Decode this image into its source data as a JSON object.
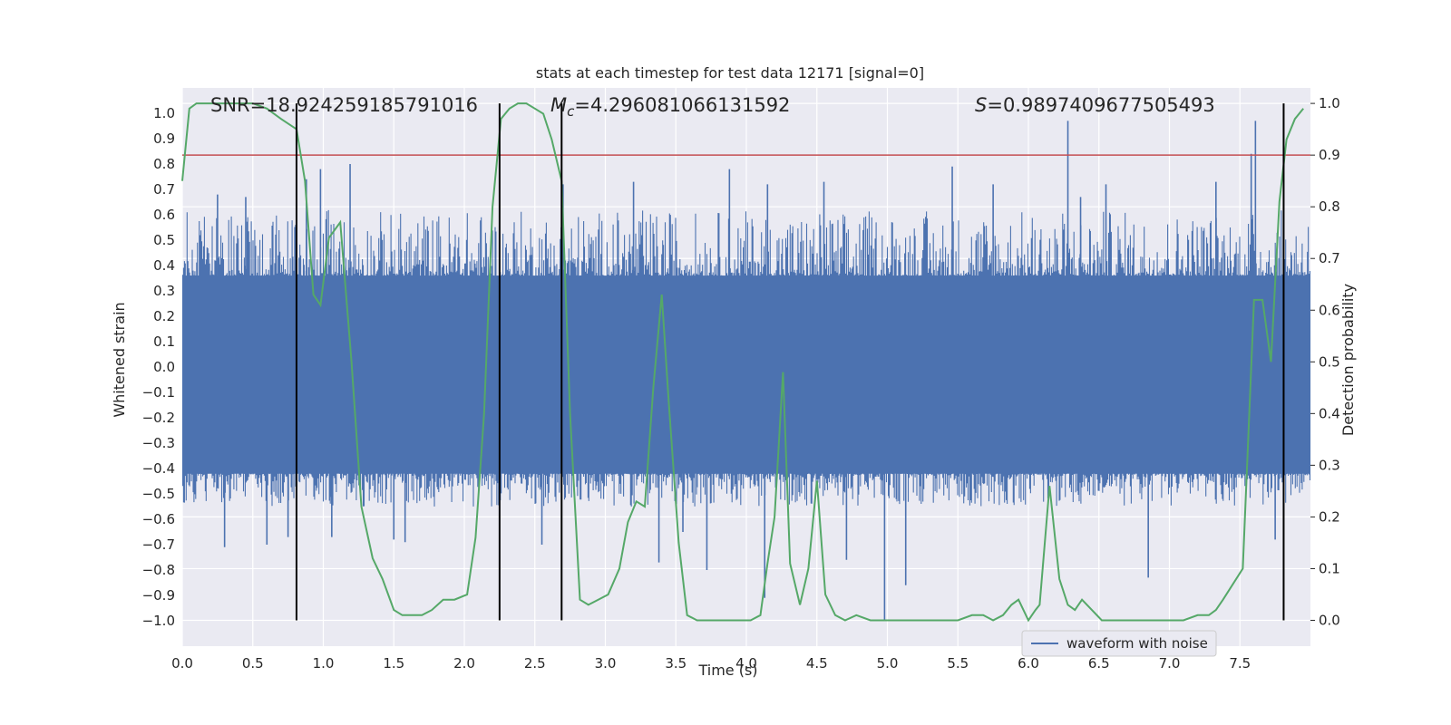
{
  "chart_data": {
    "type": "line",
    "title": "stats at each timestep for test data 12171 [signal=0]",
    "xlabel": "Time (s)",
    "ylabel_left": "Whitened strain",
    "ylabel_right": "Detection probability",
    "xlim": [
      0.0,
      8.0
    ],
    "ylim_left": [
      -1.1,
      1.1
    ],
    "ylim_right": [
      -0.05,
      1.03
    ],
    "x_ticks": [
      "0.0",
      "0.5",
      "1.0",
      "1.5",
      "2.0",
      "2.5",
      "3.0",
      "3.5",
      "4.0",
      "4.5",
      "5.0",
      "5.5",
      "6.0",
      "6.5",
      "7.0",
      "7.5"
    ],
    "y_ticks_left": [
      "1.0",
      "0.9",
      "0.8",
      "0.7",
      "0.6",
      "0.5",
      "0.4",
      "0.3",
      "0.2",
      "0.1",
      "0.0",
      "−0.1",
      "−0.2",
      "−0.3",
      "−0.4",
      "−0.5",
      "−0.6",
      "−0.7",
      "−0.8",
      "−0.9",
      "−1.0"
    ],
    "y_ticks_right": [
      "1.0",
      "0.9",
      "0.8",
      "0.7",
      "0.6",
      "0.5",
      "0.4",
      "0.3",
      "0.2",
      "0.1",
      "0.0"
    ],
    "annotations": {
      "snr": "SNR=18.924259185791016",
      "mc_symbol": "M",
      "mc_subscript": "c",
      "mc_value": "=4.296081066131592",
      "s_symbol": "S",
      "s_value": "=0.9897409677505493"
    },
    "legend": {
      "label": "waveform with noise",
      "placement": "lower-right"
    },
    "threshold_probability": 0.9,
    "vertical_markers_s": [
      0.81,
      2.25,
      2.69,
      7.81
    ],
    "waveform": {
      "name": "waveform with noise",
      "color": "#4c72b0",
      "dense_band": [
        -0.42,
        0.36
      ],
      "typical_range": [
        -0.55,
        0.62
      ],
      "spikes": [
        [
          0.25,
          0.68
        ],
        [
          0.3,
          -0.71
        ],
        [
          0.45,
          0.67
        ],
        [
          0.6,
          -0.7
        ],
        [
          0.75,
          -0.67
        ],
        [
          0.88,
          0.74
        ],
        [
          0.98,
          0.78
        ],
        [
          1.06,
          -0.67
        ],
        [
          1.19,
          0.8
        ],
        [
          1.5,
          -0.68
        ],
        [
          1.58,
          -0.69
        ],
        [
          2.55,
          -0.7
        ],
        [
          2.7,
          0.72
        ],
        [
          3.2,
          0.73
        ],
        [
          3.38,
          -0.77
        ],
        [
          3.55,
          -0.65
        ],
        [
          3.72,
          -0.8
        ],
        [
          3.88,
          0.78
        ],
        [
          4.13,
          -0.91
        ],
        [
          4.15,
          0.72
        ],
        [
          4.55,
          0.73
        ],
        [
          4.71,
          -0.76
        ],
        [
          4.98,
          -1.0
        ],
        [
          5.13,
          -0.86
        ],
        [
          5.46,
          0.79
        ],
        [
          5.75,
          0.72
        ],
        [
          6.28,
          0.97
        ],
        [
          6.37,
          0.67
        ],
        [
          6.55,
          0.72
        ],
        [
          6.85,
          -0.83
        ],
        [
          7.33,
          0.73
        ],
        [
          7.58,
          0.84
        ],
        [
          7.61,
          0.97
        ],
        [
          7.75,
          -0.68
        ]
      ]
    },
    "series": [
      {
        "name": "Detection probability",
        "axis": "right",
        "color": "#55a868",
        "x": [
          0.0,
          0.05,
          0.1,
          0.2,
          0.3,
          0.4,
          0.5,
          0.6,
          0.7,
          0.81,
          0.87,
          0.93,
          0.98,
          1.04,
          1.12,
          1.2,
          1.27,
          1.35,
          1.42,
          1.5,
          1.56,
          1.63,
          1.7,
          1.77,
          1.85,
          1.93,
          2.02,
          2.08,
          2.14,
          2.2,
          2.26,
          2.32,
          2.38,
          2.44,
          2.5,
          2.56,
          2.62,
          2.69,
          2.75,
          2.82,
          2.88,
          2.95,
          3.02,
          3.1,
          3.16,
          3.22,
          3.28,
          3.34,
          3.4,
          3.45,
          3.52,
          3.58,
          3.65,
          3.75,
          3.85,
          3.95,
          4.03,
          4.1,
          4.15,
          4.2,
          4.26,
          4.31,
          4.38,
          4.44,
          4.5,
          4.56,
          4.63,
          4.7,
          4.78,
          4.88,
          5.0,
          5.2,
          5.5,
          5.6,
          5.68,
          5.75,
          5.82,
          5.88,
          5.93,
          6.0,
          6.05,
          6.08,
          6.15,
          6.22,
          6.28,
          6.33,
          6.38,
          6.45,
          6.52,
          6.6,
          6.8,
          7.1,
          7.2,
          7.28,
          7.33,
          7.38,
          7.45,
          7.52,
          7.6,
          7.66,
          7.72,
          7.78,
          7.83,
          7.89,
          7.95
        ],
        "y": [
          0.85,
          0.99,
          1.0,
          1.0,
          1.0,
          1.0,
          1.0,
          0.99,
          0.97,
          0.95,
          0.85,
          0.63,
          0.61,
          0.74,
          0.77,
          0.5,
          0.22,
          0.12,
          0.08,
          0.02,
          0.01,
          0.01,
          0.01,
          0.02,
          0.04,
          0.04,
          0.05,
          0.16,
          0.4,
          0.8,
          0.97,
          0.99,
          1.0,
          1.0,
          0.99,
          0.98,
          0.93,
          0.85,
          0.4,
          0.04,
          0.03,
          0.04,
          0.05,
          0.1,
          0.19,
          0.23,
          0.22,
          0.45,
          0.63,
          0.42,
          0.15,
          0.01,
          0.0,
          0.0,
          0.0,
          0.0,
          0.0,
          0.01,
          0.11,
          0.2,
          0.48,
          0.11,
          0.03,
          0.1,
          0.27,
          0.05,
          0.01,
          0.0,
          0.01,
          0.0,
          0.0,
          0.0,
          0.0,
          0.01,
          0.01,
          0.0,
          0.01,
          0.03,
          0.04,
          0.0,
          0.02,
          0.03,
          0.26,
          0.08,
          0.03,
          0.02,
          0.04,
          0.02,
          0.0,
          0.0,
          0.0,
          0.0,
          0.01,
          0.01,
          0.02,
          0.04,
          0.07,
          0.1,
          0.62,
          0.62,
          0.5,
          0.81,
          0.93,
          0.97,
          0.99
        ]
      }
    ],
    "colors": {
      "background": "#eaeaf2",
      "grid": "#ffffff",
      "threshold": "#c44e52",
      "marker": "#000000"
    }
  }
}
